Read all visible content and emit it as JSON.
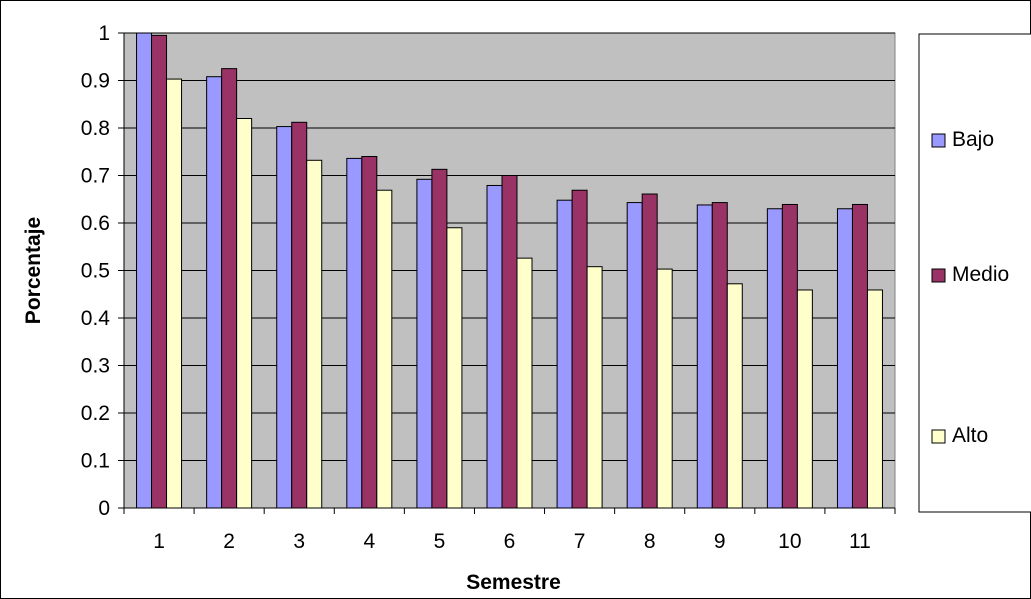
{
  "chart_data": {
    "type": "bar",
    "title": "",
    "xlabel": "Semestre",
    "ylabel": "Porcentaje",
    "ylim": [
      0,
      1
    ],
    "yticks": [
      "0",
      "0.1",
      "0.2",
      "0.3",
      "0.4",
      "0.5",
      "0.6",
      "0.7",
      "0.8",
      "0.9",
      "1"
    ],
    "categories": [
      "1",
      "2",
      "3",
      "4",
      "5",
      "6",
      "7",
      "8",
      "9",
      "10",
      "11"
    ],
    "grid": true,
    "legend_position": "right",
    "series": [
      {
        "name": "Bajo",
        "color": "#9999ff",
        "values": [
          1.0,
          0.908,
          0.803,
          0.736,
          0.692,
          0.679,
          0.648,
          0.643,
          0.638,
          0.63,
          0.63
        ]
      },
      {
        "name": "Medio",
        "color": "#993366",
        "values": [
          0.995,
          0.925,
          0.812,
          0.74,
          0.713,
          0.7,
          0.669,
          0.661,
          0.643,
          0.639,
          0.639
        ]
      },
      {
        "name": "Alto",
        "color": "#ffffcc",
        "values": [
          0.903,
          0.82,
          0.732,
          0.669,
          0.59,
          0.526,
          0.508,
          0.503,
          0.472,
          0.459,
          0.459
        ]
      }
    ],
    "plot_background": "#c0c0c0"
  }
}
